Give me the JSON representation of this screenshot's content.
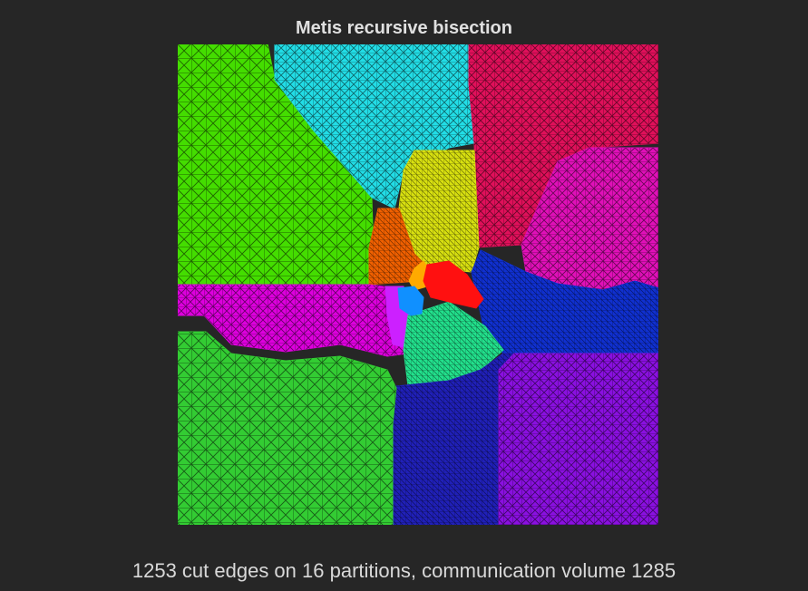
{
  "figure": {
    "title": "Metis recursive bisection",
    "caption": "1253 cut edges on 16 partitions, communication volume 1285"
  },
  "partition_colors": {
    "green_upper_left": "#44dd00",
    "cyan_top": "#22dde6",
    "crimson_top_right": "#e0105a",
    "magenta_right": "#e010b8",
    "yellow_center": "#d8e010",
    "orange_center": "#f06000",
    "amber_core": "#ffaa00",
    "red_core": "#ff1010",
    "blue_core": "#1090ff",
    "violet_core": "#cc20ff",
    "pink_left": "#dd00dd",
    "mint_center": "#22e08c",
    "navy_bottom": "#2020b8",
    "royal_blue_right": "#1030d0",
    "purple_bottom_right": "#8a10e0",
    "green_lower_left": "#33cc33"
  }
}
